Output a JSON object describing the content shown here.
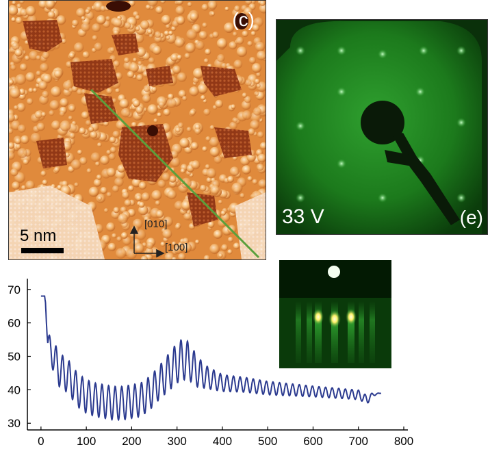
{
  "stm_panel": {
    "label": "(c)",
    "scale_bar": "5 nm",
    "axis_up": "[010]",
    "axis_right": "[100]"
  },
  "leed_panel": {
    "label": "(e)",
    "voltage": "33 V"
  },
  "chart_data": {
    "type": "line",
    "title": "",
    "xlabel": "",
    "ylabel": "",
    "xlim": [
      -30,
      800
    ],
    "ylim": [
      28,
      72
    ],
    "xticks": [
      0,
      100,
      200,
      300,
      400,
      500,
      600,
      700,
      800
    ],
    "yticks": [
      30,
      40,
      50,
      60,
      70
    ],
    "grid": false,
    "series": [
      {
        "color": "#2b3a8f",
        "x": [
          0,
          8,
          10,
          15,
          20,
          25,
          30,
          40,
          50,
          60,
          80,
          100,
          120,
          140,
          160,
          180,
          200,
          220,
          240,
          260,
          280,
          300,
          310,
          320,
          330,
          340,
          360,
          380,
          400,
          450,
          500,
          550,
          600,
          650,
          700,
          720,
          730,
          750
        ],
        "mean": [
          68,
          68,
          66,
          54,
          52,
          51,
          49,
          46,
          45,
          44,
          40,
          38,
          37,
          36.5,
          36,
          36,
          36.5,
          37,
          39,
          42,
          45,
          48,
          49,
          49,
          48,
          46,
          44,
          43,
          42,
          41.5,
          40.5,
          40,
          39.5,
          39,
          38.5,
          37,
          38.5,
          39
        ],
        "amplitude": [
          0,
          0,
          0,
          3,
          4,
          4.5,
          5,
          5,
          5,
          5,
          5,
          5,
          5,
          5,
          5,
          5,
          5,
          5,
          5,
          5,
          5.5,
          6,
          6,
          6,
          5.5,
          5,
          3.5,
          3,
          2.5,
          2.2,
          2,
          1.8,
          1.6,
          1.5,
          1.4,
          1.2,
          0.5,
          0
        ],
        "oscillation_period": 14.5
      }
    ]
  },
  "colors": {
    "stm_bright": "#ffd7a0",
    "stm_mid": "#e49a4a",
    "stm_dark": "#8a2a10",
    "line_profile": "#5aa03c",
    "leed_screen": "#1f7a1f",
    "chart_line": "#2b3a8f"
  }
}
